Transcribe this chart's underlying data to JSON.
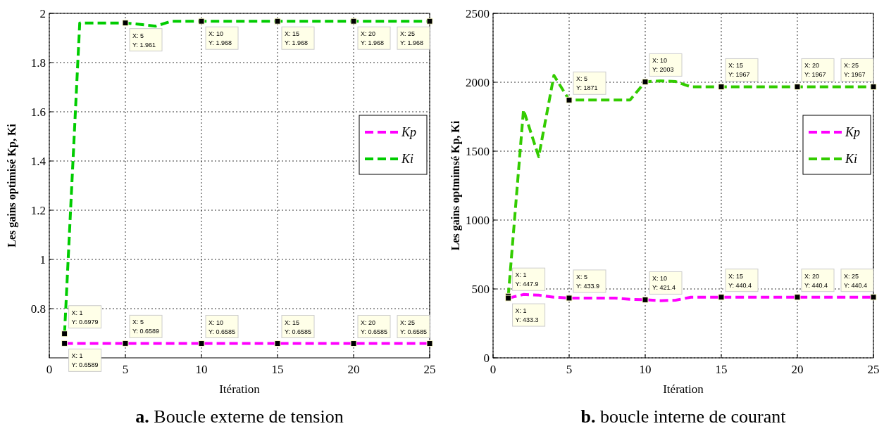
{
  "chart_data": [
    {
      "type": "line",
      "title": "a. Boucle externe de tension",
      "xlabel": "Itération",
      "ylabel": "Les gains optimisé Kp, Ki",
      "x": [
        1,
        2,
        3,
        4,
        5,
        6,
        7,
        8,
        9,
        10,
        11,
        12,
        13,
        14,
        15,
        16,
        17,
        18,
        19,
        20,
        21,
        22,
        23,
        24,
        25
      ],
      "xlim": [
        0,
        25
      ],
      "xticks": [
        0,
        5,
        10,
        15,
        20,
        25
      ],
      "ylim": [
        0.6,
        2
      ],
      "yticks": [
        0.8,
        1,
        1.2,
        1.4,
        1.6,
        1.8,
        2
      ],
      "grid": true,
      "legend": "right",
      "line_style": "dashed",
      "series": [
        {
          "name": "Kp",
          "color": "#ff00ff",
          "values": [
            0.6589,
            0.6589,
            0.6589,
            0.6589,
            0.6589,
            0.6585,
            0.6585,
            0.6585,
            0.6585,
            0.6585,
            0.6585,
            0.6585,
            0.6585,
            0.6585,
            0.6585,
            0.6585,
            0.6585,
            0.6585,
            0.6585,
            0.6585,
            0.6585,
            0.6585,
            0.6585,
            0.6585,
            0.6585
          ]
        },
        {
          "name": "Ki",
          "color": "#00cc00",
          "values": [
            0.6979,
            1.961,
            1.961,
            1.961,
            1.961,
            1.955,
            1.948,
            1.968,
            1.968,
            1.968,
            1.968,
            1.968,
            1.968,
            1.968,
            1.968,
            1.968,
            1.968,
            1.968,
            1.968,
            1.968,
            1.968,
            1.968,
            1.968,
            1.968,
            1.968
          ]
        }
      ],
      "annotations": [
        {
          "text": "X: 1\nY: 0.6979",
          "x": 1,
          "y": 0.6979
        },
        {
          "text": "X: 1\nY: 0.6589",
          "x": 1,
          "y": 0.6589
        },
        {
          "text": "X: 5\nY: 0.6589",
          "x": 5,
          "y": 0.6589
        },
        {
          "text": "X: 10\nY: 0.6585",
          "x": 10,
          "y": 0.6585
        },
        {
          "text": "X: 15\nY: 0.6585",
          "x": 15,
          "y": 0.6585
        },
        {
          "text": "X: 20\nY: 0.6585",
          "x": 20,
          "y": 0.6585
        },
        {
          "text": "X: 25\nY: 0.6585",
          "x": 25,
          "y": 0.6585
        },
        {
          "text": "X: 5\nY: 1.961",
          "x": 5,
          "y": 1.961
        },
        {
          "text": "X: 10\nY: 1.968",
          "x": 10,
          "y": 1.968
        },
        {
          "text": "X: 15\nY: 1.968",
          "x": 15,
          "y": 1.968
        },
        {
          "text": "X: 20\nY: 1.968",
          "x": 20,
          "y": 1.968
        },
        {
          "text": "X: 25\nY: 1.968",
          "x": 25,
          "y": 1.968
        }
      ]
    },
    {
      "type": "line",
      "title": "b. boucle interne de courant",
      "xlabel": "Itération",
      "ylabel": "Les gains optmimsé Kp, Ki",
      "x": [
        1,
        2,
        3,
        4,
        5,
        6,
        7,
        8,
        9,
        10,
        11,
        12,
        13,
        14,
        15,
        16,
        17,
        18,
        19,
        20,
        21,
        22,
        23,
        24,
        25
      ],
      "xlim": [
        0,
        25
      ],
      "xticks": [
        0,
        5,
        10,
        15,
        20,
        25
      ],
      "ylim": [
        0,
        2500
      ],
      "yticks": [
        0,
        500,
        1000,
        1500,
        2000,
        2500
      ],
      "grid": true,
      "legend": "right",
      "line_style": "dashed",
      "series": [
        {
          "name": "Kp",
          "color": "#ff00ff",
          "values": [
            433.3,
            460,
            455,
            440,
            433.9,
            433.9,
            433.9,
            433.9,
            425,
            421.4,
            415,
            418,
            440.4,
            440.4,
            440.4,
            440.4,
            440.4,
            440.4,
            440.4,
            440.4,
            440.4,
            440.4,
            440.4,
            440.4,
            440.4
          ]
        },
        {
          "name": "Ki",
          "color": "#33cc00",
          "values": [
            447.9,
            1800,
            1460,
            2050,
            1871,
            1871,
            1871,
            1871,
            1871,
            2003,
            2010,
            2005,
            1967,
            1967,
            1967,
            1967,
            1967,
            1967,
            1967,
            1967,
            1967,
            1967,
            1967,
            1967,
            1967
          ]
        }
      ],
      "annotations": [
        {
          "text": "X: 1\nY: 447.9",
          "x": 1,
          "y": 447.9
        },
        {
          "text": "X: 1\nY: 433.3",
          "x": 1,
          "y": 433.3
        },
        {
          "text": "X: 5\nY: 433.9",
          "x": 5,
          "y": 433.9
        },
        {
          "text": "X: 10\nY: 421.4",
          "x": 10,
          "y": 421.4
        },
        {
          "text": "X: 15\nY: 440.4",
          "x": 15,
          "y": 440.4
        },
        {
          "text": "X: 20\nY: 440.4",
          "x": 20,
          "y": 440.4
        },
        {
          "text": "X: 25\nY: 440.4",
          "x": 25,
          "y": 440.4
        },
        {
          "text": "X: 5\nY: 1871",
          "x": 5,
          "y": 1871
        },
        {
          "text": "X: 10\nY: 2003",
          "x": 10,
          "y": 2003
        },
        {
          "text": "X: 15\nY: 1967",
          "x": 15,
          "y": 1967
        },
        {
          "text": "X: 20\nY: 1967",
          "x": 20,
          "y": 1967
        },
        {
          "text": "X: 25\nY: 1967",
          "x": 25,
          "y": 1967
        }
      ]
    }
  ]
}
